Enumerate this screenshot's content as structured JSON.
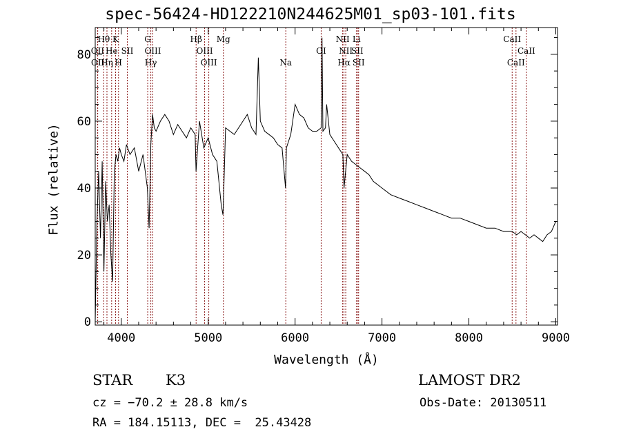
{
  "title": "spec-56424-HD122210N244625M01_sp03-101.fits",
  "info": {
    "class_label": "STAR",
    "subclass_label": "K3",
    "survey": "LAMOST DR2",
    "cz": "cz = −70.2 ± 28.8 km/s",
    "obs_date": "Obs-Date: 20130511",
    "radec": "RA = 184.15113, DEC =  25.43428"
  },
  "chart_data": {
    "type": "line",
    "title": "spec-56424-HD122210N244625M01_sp03-101.fits",
    "xlabel": "Wavelength (Å)",
    "ylabel": "Flux (relative)",
    "xlim": [
      3700,
      9020
    ],
    "ylim": [
      -1,
      88
    ],
    "xticks": [
      4000,
      5000,
      6000,
      7000,
      8000,
      9000
    ],
    "yticks": [
      0,
      20,
      40,
      60,
      80
    ],
    "grid": false,
    "line_color": "#000000",
    "marker_color": "#8b1a1a",
    "series": [
      {
        "x": [
          3700,
          3720,
          3740,
          3760,
          3780,
          3800,
          3820,
          3840,
          3860,
          3880,
          3900,
          3920,
          3940,
          3960,
          3980,
          4000,
          4030,
          4060,
          4100,
          4150,
          4200,
          4250,
          4300,
          4320,
          4340,
          4360,
          4380,
          4400,
          4450,
          4500,
          4550,
          4600,
          4650,
          4700,
          4750,
          4800,
          4850,
          4860,
          4900,
          4950,
          5000,
          5050,
          5100,
          5150,
          5170,
          5180,
          5200,
          5250,
          5300,
          5350,
          5400,
          5450,
          5500,
          5550,
          5577,
          5600,
          5650,
          5700,
          5750,
          5800,
          5850,
          5890,
          5900,
          5950,
          6000,
          6050,
          6100,
          6150,
          6200,
          6250,
          6300,
          6310,
          6320,
          6350,
          6363,
          6400,
          6450,
          6500,
          6550,
          6563,
          6600,
          6650,
          6700,
          6750,
          6800,
          6850,
          6900,
          7000,
          7100,
          7200,
          7300,
          7400,
          7500,
          7600,
          7700,
          7800,
          7900,
          8000,
          8100,
          8200,
          8300,
          8400,
          8500,
          8550,
          8600,
          8650,
          8700,
          8750,
          8800,
          8850,
          8900,
          8950,
          9000
        ],
        "y": [
          0,
          30,
          45,
          25,
          48,
          15,
          42,
          30,
          35,
          20,
          12,
          45,
          50,
          48,
          52,
          50,
          48,
          53,
          50,
          52,
          45,
          50,
          40,
          28,
          53,
          62,
          58,
          57,
          60,
          62,
          60,
          56,
          59,
          57,
          55,
          58,
          56,
          45,
          60,
          52,
          55,
          50,
          48,
          35,
          32,
          40,
          58,
          57,
          56,
          58,
          60,
          62,
          58,
          56,
          79,
          60,
          57,
          56,
          55,
          53,
          52,
          40,
          52,
          56,
          65,
          62,
          61,
          58,
          57,
          57,
          58,
          85,
          57,
          58,
          65,
          56,
          54,
          52,
          50,
          40,
          50,
          48,
          47,
          46,
          45,
          44,
          42,
          40,
          38,
          37,
          36,
          35,
          34,
          33,
          32,
          31,
          31,
          30,
          29,
          28,
          28,
          27,
          27,
          26,
          27,
          26,
          25,
          26,
          25,
          24,
          26,
          27,
          30
        ]
      }
    ],
    "spectral_lines": [
      {
        "label": "Hθ",
        "wavelength": 3798,
        "row": 1
      },
      {
        "label": "K",
        "wavelength": 3934,
        "row": 1
      },
      {
        "label": "G",
        "wavelength": 4304,
        "row": 1
      },
      {
        "label": "Hβ",
        "wavelength": 4861,
        "row": 1
      },
      {
        "label": "Mg",
        "wavelength": 5175,
        "row": 1
      },
      {
        "label": "NII",
        "wavelength": 6548,
        "row": 1
      },
      {
        "label": "Li",
        "wavelength": 6708,
        "row": 1
      },
      {
        "label": "CaII",
        "wavelength": 8498,
        "row": 1
      },
      {
        "label": "OII",
        "wavelength": 3727,
        "row": 2
      },
      {
        "label": "He",
        "wavelength": 3889,
        "row": 2
      },
      {
        "label": "SII",
        "wavelength": 4069,
        "row": 2
      },
      {
        "label": "OIII",
        "wavelength": 4363,
        "row": 2
      },
      {
        "label": "OIII",
        "wavelength": 4959,
        "row": 2
      },
      {
        "label": "OI",
        "wavelength": 6300,
        "row": 2
      },
      {
        "label": "NII",
        "wavelength": 6583,
        "row": 2
      },
      {
        "label": "SII",
        "wavelength": 6716,
        "row": 2
      },
      {
        "label": "CaII",
        "wavelength": 8662,
        "row": 2
      },
      {
        "label": "OII",
        "wavelength": 3729,
        "row": 3
      },
      {
        "label": "Hη",
        "wavelength": 3835,
        "row": 3
      },
      {
        "label": "H",
        "wavelength": 3968,
        "row": 3
      },
      {
        "label": "Hγ",
        "wavelength": 4340,
        "row": 3
      },
      {
        "label": "OIII",
        "wavelength": 5007,
        "row": 3
      },
      {
        "label": "Na",
        "wavelength": 5893,
        "row": 3
      },
      {
        "label": "Hα",
        "wavelength": 6563,
        "row": 3
      },
      {
        "label": "SII",
        "wavelength": 6731,
        "row": 3
      },
      {
        "label": "CaII",
        "wavelength": 8542,
        "row": 3
      }
    ]
  }
}
